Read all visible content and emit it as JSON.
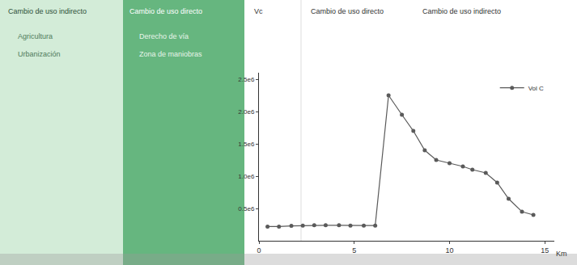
{
  "chart_data": {
    "type": "line",
    "xlabel": "Km",
    "ylabel": "Vc",
    "x": [
      0.45,
      1.05,
      1.7,
      2.3,
      2.9,
      3.5,
      4.2,
      4.8,
      5.5,
      6.1,
      6.8,
      7.5,
      8.1,
      8.7,
      9.3,
      10.0,
      10.7,
      11.2,
      11.9,
      12.5,
      13.1,
      13.8,
      14.4
    ],
    "series": [
      {
        "name": "Vol C",
        "color": "#5a5a5a",
        "marker": "circle",
        "line_style": "solid",
        "values": [
          220000,
          220000,
          230000,
          235000,
          240000,
          240000,
          240000,
          235000,
          235000,
          235000,
          2250000,
          1950000,
          1700000,
          1400000,
          1250000,
          1200000,
          1150000,
          1100000,
          1050000,
          900000,
          650000,
          450000,
          400000
        ]
      }
    ],
    "xlim": [
      0,
      15.5
    ],
    "xticks": [
      0,
      5,
      10,
      15
    ],
    "ylim": [
      0,
      2600000
    ],
    "yticks": [
      {
        "value": 500000,
        "label": "0.5e6"
      },
      {
        "value": 1000000,
        "label": "1.0e6"
      },
      {
        "value": 1500000,
        "label": "1.5e6"
      },
      {
        "value": 2000000,
        "label": "2.0e6"
      },
      {
        "value": 2500000,
        "label": "2.5e6"
      }
    ],
    "grid": false,
    "legend": "upper right",
    "annotations": {
      "left_panel": {
        "title": "Cambio de uso indirecto",
        "items": [
          "Agricultura",
          "Urbanización"
        ]
      },
      "middle_panel": {
        "title": "Cambio de uso directo",
        "items": [
          "Derecho de vía",
          "Zona de maniobras"
        ]
      },
      "chart_headers": [
        "Cambio de uso directo",
        "Cambio de uso indirecto"
      ]
    }
  }
}
